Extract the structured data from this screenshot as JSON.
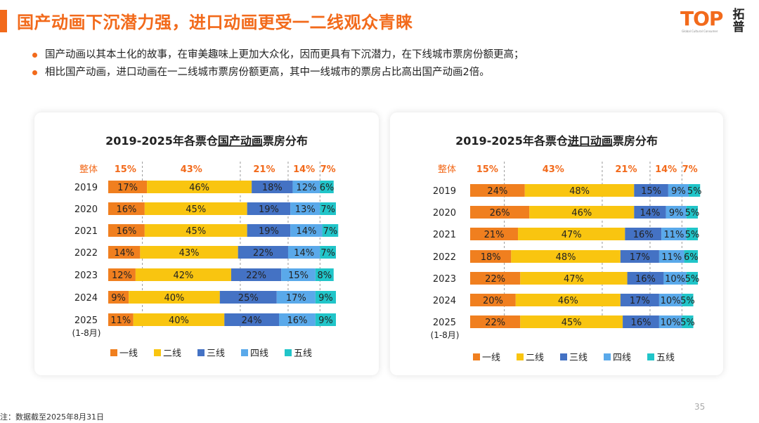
{
  "title": "国产动画下沉潜力强，进口动画更受一二线观众青睐",
  "logo": {
    "text": "TOP",
    "cn": "拓普",
    "sub": "Global Cultural Consumer"
  },
  "bullets": [
    "国产动画以其本土化的故事，在审美趣味上更加大众化，因而更具有下沉潜力，在下线城市票房份额更高；",
    "相比国产动画，进口动画在一二线城市票房份额更高，其中一线城市的票房占比高出国产动画2倍。"
  ],
  "footnote": "注：数据截至2025年8月31日",
  "page_number": "35",
  "colors": {
    "accent": "#f26a1b",
    "series": [
      "#f07f1f",
      "#f9c510",
      "#4472c4",
      "#5aa9ea",
      "#21c5c9"
    ]
  },
  "chart_data": [
    {
      "type": "bar",
      "orientation": "horizontal",
      "stacked": true,
      "title_parts": [
        "2019-2025年各票仓",
        "国产动画",
        "票房分布"
      ],
      "categories": [
        "2019",
        "2020",
        "2021",
        "2022",
        "2023",
        "2024",
        "2025"
      ],
      "category_note": "(1-8月)",
      "overall_label": "整体",
      "overall": [
        15,
        43,
        21,
        14,
        7
      ],
      "overall_labels": [
        "15%",
        "43%",
        "21%",
        "14%",
        "7%"
      ],
      "series": [
        {
          "name": "一线",
          "values": [
            17,
            16,
            16,
            14,
            12,
            9,
            11
          ]
        },
        {
          "name": "二线",
          "values": [
            46,
            45,
            45,
            43,
            42,
            40,
            40
          ]
        },
        {
          "name": "三线",
          "values": [
            18,
            19,
            19,
            22,
            22,
            25,
            24
          ]
        },
        {
          "name": "四线",
          "values": [
            12,
            13,
            14,
            14,
            15,
            17,
            16
          ]
        },
        {
          "name": "五线",
          "values": [
            6,
            7,
            7,
            7,
            8,
            9,
            9
          ]
        }
      ],
      "xlim": [
        0,
        100
      ],
      "legend": "bottom"
    },
    {
      "type": "bar",
      "orientation": "horizontal",
      "stacked": true,
      "title_parts": [
        "2019-2025年各票仓",
        "进口动画",
        "票房分布"
      ],
      "categories": [
        "2019",
        "2020",
        "2021",
        "2022",
        "2023",
        "2024",
        "2025"
      ],
      "category_note": "(1-8月)",
      "overall_label": "整体",
      "overall": [
        15,
        43,
        21,
        14,
        7
      ],
      "overall_labels": [
        "15%",
        "43%",
        "21%",
        "14%",
        "7%"
      ],
      "series": [
        {
          "name": "一线",
          "values": [
            24,
            26,
            21,
            18,
            22,
            20,
            22
          ]
        },
        {
          "name": "二线",
          "values": [
            48,
            46,
            47,
            48,
            47,
            46,
            45
          ]
        },
        {
          "name": "三线",
          "values": [
            15,
            14,
            16,
            17,
            16,
            17,
            16
          ]
        },
        {
          "name": "四线",
          "values": [
            9,
            9,
            11,
            11,
            10,
            10,
            10
          ]
        },
        {
          "name": "五线",
          "values": [
            5,
            5,
            5,
            6,
            5,
            5,
            5
          ]
        }
      ],
      "xlim": [
        0,
        100
      ],
      "legend": "bottom"
    }
  ]
}
